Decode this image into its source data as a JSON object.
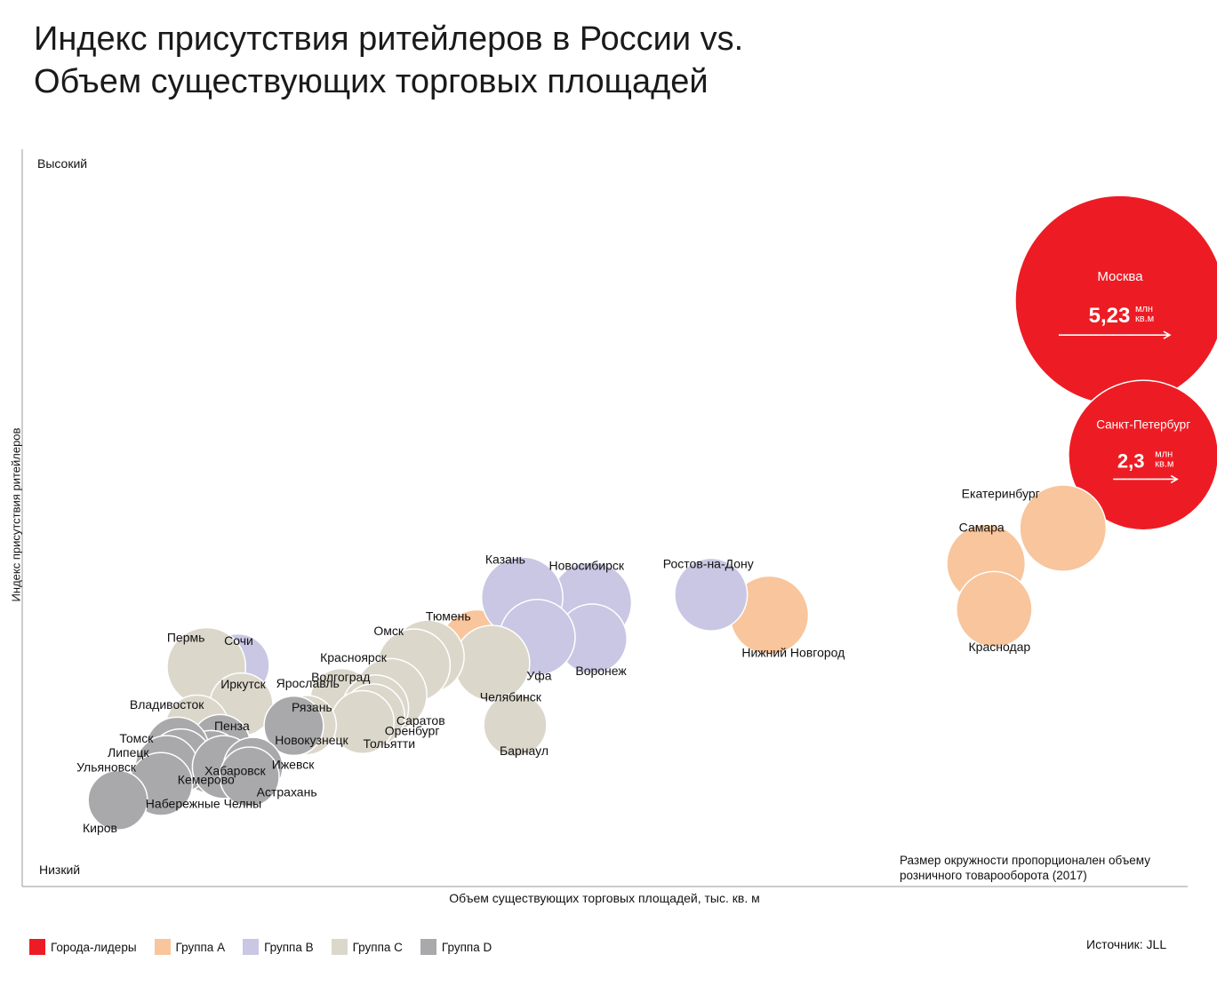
{
  "header": {
    "title_line1": "Индекс присутствия ритейлеров в России vs.",
    "title_line2": "Объем существующих торговых площадей"
  },
  "chart_data": {
    "type": "scatter",
    "title": "Индекс присутствия ритейлеров в России vs. Объем существующих торговых площадей",
    "xlabel": "Объем существующих торговых площадей, тыс. кв. м",
    "ylabel": "Индекс присутствия ритейлеров",
    "y_high_label": "Высокий",
    "y_low_label": "Низкий",
    "xlim": [
      0,
      100
    ],
    "ylim": [
      0,
      100
    ],
    "size_note": "Размер окружности пропорционален объему розничного товарооборота (2017)",
    "groups": [
      {
        "id": "leaders",
        "name": "Города-лидеры",
        "color": "#ED1C24"
      },
      {
        "id": "A",
        "name": "Группа А",
        "color": "#F8C59C"
      },
      {
        "id": "B",
        "name": "Группа В",
        "color": "#C9C7E3"
      },
      {
        "id": "C",
        "name": "Группа С",
        "color": "#DCD7CB"
      },
      {
        "id": "D",
        "name": "Группа D",
        "color": "#A9A9AB"
      }
    ],
    "points": [
      {
        "city": "Москва",
        "group": "leaders",
        "x": 94.2,
        "y": 79.5,
        "size": 100,
        "value": "5,23",
        "unit_top": "млн",
        "unit_bottom": "кв.м"
      },
      {
        "city": "Санкт-Петербург",
        "group": "leaders",
        "x": 96.2,
        "y": 58.5,
        "size": 51,
        "value": "2,3",
        "unit_top": "млн",
        "unit_bottom": "кв.м"
      },
      {
        "city": "Екатеринбург",
        "group": "A",
        "x": 89.3,
        "y": 48.6,
        "size": 17
      },
      {
        "city": "Самара",
        "group": "A",
        "x": 82.7,
        "y": 43.8,
        "size": 14
      },
      {
        "city": "Краснодар",
        "group": "A",
        "x": 83.4,
        "y": 37.6,
        "size": 13
      },
      {
        "city": "Нижний Новгород",
        "group": "A",
        "x": 64.1,
        "y": 36.8,
        "size": 14
      },
      {
        "city": "Тюмень",
        "group": "A",
        "x": 39.0,
        "y": 32.6,
        "size": 12
      },
      {
        "city": "Ростов-на-Дону",
        "group": "B",
        "x": 59.1,
        "y": 39.6,
        "size": 12
      },
      {
        "city": "Новосибирск",
        "group": "B",
        "x": 48.8,
        "y": 38.5,
        "size": 15
      },
      {
        "city": "Воронеж",
        "group": "B",
        "x": 48.9,
        "y": 33.6,
        "size": 11
      },
      {
        "city": "Казань",
        "group": "B",
        "x": 42.9,
        "y": 39.2,
        "size": 15
      },
      {
        "city": "Уфа",
        "group": "B",
        "x": 44.2,
        "y": 33.8,
        "size": 13
      },
      {
        "city": "Сочи",
        "group": "B",
        "x": 18.5,
        "y": 30.0,
        "size": 9
      },
      {
        "city": "Челябинск",
        "group": "C",
        "x": 40.3,
        "y": 30.3,
        "size": 13
      },
      {
        "city": "Барнаул",
        "group": "C",
        "x": 42.3,
        "y": 21.9,
        "size": 9
      },
      {
        "city": "Омск",
        "group": "C",
        "x": 34.8,
        "y": 31.2,
        "size": 12
      },
      {
        "city": "Красноярск",
        "group": "C",
        "x": 33.6,
        "y": 30.0,
        "size": 12
      },
      {
        "city": "Волгоград",
        "group": "C",
        "x": 31.6,
        "y": 26.0,
        "size": 12
      },
      {
        "city": "Ярославль",
        "group": "C",
        "x": 27.4,
        "y": 25.3,
        "size": 9
      },
      {
        "city": "Саратов",
        "group": "C",
        "x": 30.3,
        "y": 24.2,
        "size": 10
      },
      {
        "city": "Оренбург",
        "group": "C",
        "x": 30.1,
        "y": 23.2,
        "size": 9
      },
      {
        "city": "Тольятти",
        "group": "C",
        "x": 29.2,
        "y": 22.3,
        "size": 9
      },
      {
        "city": "Пермь",
        "group": "C",
        "x": 15.8,
        "y": 29.8,
        "size": 14
      },
      {
        "city": "Иркутск",
        "group": "C",
        "x": 18.8,
        "y": 24.7,
        "size": 9
      },
      {
        "city": "Владивосток",
        "group": "C",
        "x": 15.0,
        "y": 21.7,
        "size": 9
      },
      {
        "city": "Рязань",
        "group": "C",
        "x": 24.4,
        "y": 21.9,
        "size": 8
      },
      {
        "city": "Новокузнецк",
        "group": "D",
        "x": 23.3,
        "y": 21.8,
        "size": 8
      },
      {
        "city": "Пенза",
        "group": "D",
        "x": 17.0,
        "y": 19.3,
        "size": 8
      },
      {
        "city": "Хабаровск",
        "group": "D",
        "x": 16.2,
        "y": 16.9,
        "size": 9
      },
      {
        "city": "Томск",
        "group": "D",
        "x": 13.3,
        "y": 18.7,
        "size": 9
      },
      {
        "city": "Липецк",
        "group": "D",
        "x": 13.6,
        "y": 17.1,
        "size": 9
      },
      {
        "city": "Ульяновск",
        "group": "D",
        "x": 12.4,
        "y": 16.2,
        "size": 9
      },
      {
        "city": "Кемерово",
        "group": "D",
        "x": 17.3,
        "y": 16.2,
        "size": 9
      },
      {
        "city": "Ижевск",
        "group": "D",
        "x": 19.8,
        "y": 16.2,
        "size": 8
      },
      {
        "city": "Астрахань",
        "group": "D",
        "x": 19.5,
        "y": 14.9,
        "size": 8
      },
      {
        "city": "Набережные Челны",
        "group": "D",
        "x": 11.9,
        "y": 13.9,
        "size": 9
      },
      {
        "city": "Киров",
        "group": "D",
        "x": 8.2,
        "y": 11.7,
        "size": 8
      }
    ]
  },
  "legend_items": [
    {
      "label": "Города-лидеры",
      "color": "#ED1C24"
    },
    {
      "label": "Группа А",
      "color": "#F8C59C"
    },
    {
      "label": "Группа В",
      "color": "#C9C7E3"
    },
    {
      "label": "Группа С",
      "color": "#DCD7CB"
    },
    {
      "label": "Группа D",
      "color": "#A9A9AB"
    }
  ],
  "footer": {
    "note_line1": "Размер окружности пропорционален объему",
    "note_line2": "розничного товарооборота (2017)",
    "source": "Источник: JLL"
  }
}
